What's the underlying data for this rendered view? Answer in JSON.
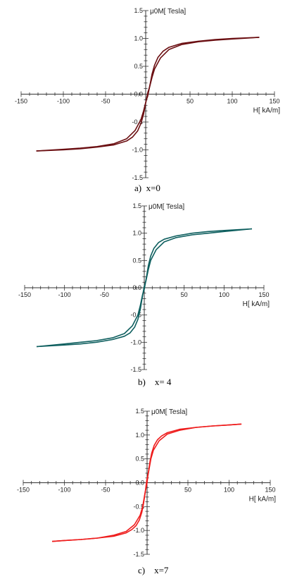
{
  "figure": {
    "panels": [
      {
        "caption": "a)  x=0"
      },
      {
        "caption": "b)    x= 4"
      },
      {
        "caption": "c)    x=7"
      }
    ]
  },
  "chart_data": [
    {
      "type": "line",
      "ylabel": "μ0M[ Tesla]",
      "xlabel": "H[ kA/m]",
      "xlim": [
        -150,
        150
      ],
      "ylim": [
        -1.5,
        1.5
      ],
      "xticks": [
        -150,
        -100,
        -50,
        50,
        100,
        150
      ],
      "xtick_labels": [
        "-150",
        "-100",
        "-50",
        "50",
        "100",
        "150"
      ],
      "yticks": [
        1.5,
        1.0,
        0.5,
        0.0,
        -0.5,
        -1.0,
        -1.5
      ],
      "ytick_labels": [
        "1.5",
        "1.0",
        "0.5",
        "0.0",
        "-0.5",
        "-1.0",
        "-1.5"
      ],
      "grid": false,
      "color": "#6b0f12",
      "series": [
        {
          "x": [
            -132,
            -100,
            -80,
            -60,
            -40,
            -25,
            -15,
            -8,
            -5,
            -2,
            0,
            3,
            5,
            8,
            12,
            18,
            25,
            40,
            60,
            80,
            100,
            132
          ],
          "values": [
            -1.02,
            -0.99,
            -0.97,
            -0.94,
            -0.89,
            -0.8,
            -0.65,
            -0.45,
            -0.3,
            -0.12,
            -0.03,
            0.2,
            0.36,
            0.52,
            0.66,
            0.77,
            0.84,
            0.91,
            0.95,
            0.98,
            1.0,
            1.02
          ]
        },
        {
          "x": [
            132,
            100,
            80,
            60,
            40,
            25,
            15,
            8,
            5,
            2,
            0,
            -3,
            -5,
            -8,
            -12,
            -18,
            -25,
            -40,
            -60,
            -80,
            -100,
            -132
          ],
          "values": [
            1.02,
            0.99,
            0.97,
            0.94,
            0.89,
            0.8,
            0.65,
            0.45,
            0.3,
            0.12,
            0.03,
            -0.2,
            -0.36,
            -0.52,
            -0.66,
            -0.77,
            -0.84,
            -0.91,
            -0.95,
            -0.98,
            -1.0,
            -1.02
          ]
        }
      ]
    },
    {
      "type": "line",
      "ylabel": "μ0M[ Tesla]",
      "xlabel": "H[ kA/m]",
      "xlim": [
        -150,
        150
      ],
      "ylim": [
        -1.5,
        1.5
      ],
      "xticks": [
        -150,
        -100,
        -50,
        50,
        100,
        150
      ],
      "xtick_labels": [
        "-150",
        "-100",
        "-50",
        "50",
        "100",
        "150"
      ],
      "yticks": [
        1.5,
        1.0,
        0.5,
        0.0,
        -0.5,
        -1.0,
        -1.5
      ],
      "ytick_labels": [
        "1.5",
        "1.0",
        "0.5",
        "0.0",
        "-0.5",
        "-1.0",
        "-1.5"
      ],
      "grid": false,
      "color": "#0e5f5f",
      "series": [
        {
          "x": [
            -135,
            -100,
            -80,
            -60,
            -40,
            -25,
            -15,
            -8,
            -5,
            -2,
            0,
            3,
            5,
            8,
            12,
            18,
            25,
            40,
            60,
            80,
            100,
            135
          ],
          "values": [
            -1.08,
            -1.03,
            -1.0,
            -0.97,
            -0.92,
            -0.84,
            -0.7,
            -0.5,
            -0.33,
            -0.12,
            -0.03,
            0.22,
            0.4,
            0.58,
            0.72,
            0.83,
            0.89,
            0.95,
            1.0,
            1.03,
            1.05,
            1.08
          ]
        },
        {
          "x": [
            135,
            100,
            80,
            60,
            40,
            25,
            15,
            8,
            5,
            2,
            0,
            -3,
            -5,
            -8,
            -12,
            -18,
            -25,
            -40,
            -60,
            -80,
            -100,
            -135
          ],
          "values": [
            1.08,
            1.03,
            1.0,
            0.97,
            0.92,
            0.84,
            0.7,
            0.5,
            0.33,
            0.12,
            0.03,
            -0.22,
            -0.4,
            -0.58,
            -0.72,
            -0.83,
            -0.89,
            -0.95,
            -1.0,
            -1.03,
            -1.05,
            -1.08
          ]
        }
      ]
    },
    {
      "type": "line",
      "ylabel": "μ0M[ Tesla]",
      "xlabel": "H[ kA/m]",
      "xlim": [
        -150,
        150
      ],
      "ylim": [
        -1.5,
        1.5
      ],
      "xticks": [
        -150,
        -100,
        -50,
        50,
        100,
        150
      ],
      "xtick_labels": [
        "-150",
        "-100",
        "-50",
        "50",
        "100",
        "150"
      ],
      "yticks": [
        1.5,
        1.0,
        0.5,
        0.0,
        -0.5,
        -1.0,
        -1.5
      ],
      "ytick_labels": [
        "1.5",
        "1.0",
        "0.5",
        "0.0",
        "-0.5",
        "-1.0",
        "-1.5"
      ],
      "grid": false,
      "color": "#ee1c1c",
      "series": [
        {
          "x": [
            -115,
            -100,
            -80,
            -60,
            -40,
            -25,
            -15,
            -8,
            -5,
            -2,
            0,
            2,
            4,
            6,
            9,
            13,
            18,
            25,
            40,
            60,
            80,
            100,
            115
          ],
          "values": [
            -1.23,
            -1.21,
            -1.19,
            -1.16,
            -1.1,
            -1.02,
            -0.88,
            -0.68,
            -0.5,
            -0.2,
            -0.05,
            0.22,
            0.45,
            0.62,
            0.78,
            0.9,
            0.98,
            1.05,
            1.12,
            1.16,
            1.19,
            1.21,
            1.23
          ]
        },
        {
          "x": [
            115,
            100,
            80,
            60,
            40,
            25,
            15,
            8,
            5,
            2,
            0,
            -2,
            -4,
            -6,
            -9,
            -13,
            -18,
            -25,
            -40,
            -60,
            -80,
            -100,
            -115
          ],
          "values": [
            1.23,
            1.21,
            1.19,
            1.16,
            1.1,
            1.02,
            0.88,
            0.68,
            0.5,
            0.2,
            0.05,
            -0.22,
            -0.45,
            -0.62,
            -0.78,
            -0.9,
            -0.98,
            -1.05,
            -1.12,
            -1.16,
            -1.19,
            -1.21,
            -1.23
          ]
        }
      ]
    }
  ]
}
